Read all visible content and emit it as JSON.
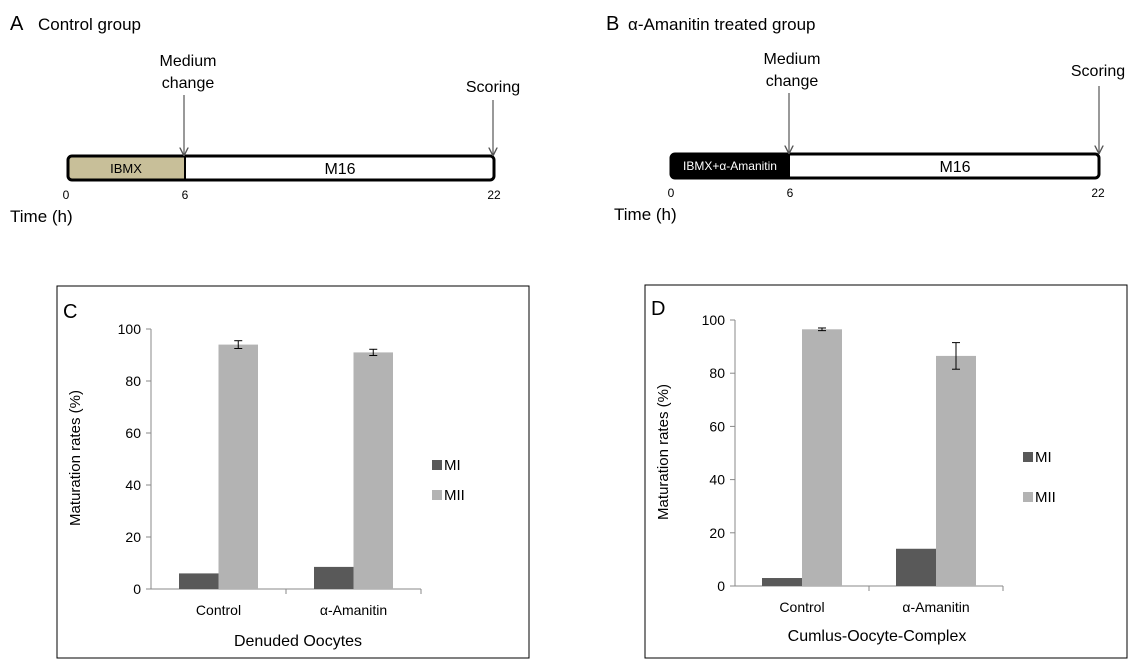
{
  "timelines": [
    {
      "panel_letter": "A",
      "title": "Control group",
      "pre_bar_label": "IBMX",
      "post_bar_label": "M16",
      "pre_bar_color": "#c8bf99",
      "pre_text_color": "#000000",
      "medium_change_label": [
        "Medium",
        "change"
      ],
      "scoring_label": "Scoring",
      "ticks": [
        "0",
        "6",
        "22"
      ],
      "time_axis_label": "Time (h)",
      "change_hour": 6,
      "end_hour": 22
    },
    {
      "panel_letter": "B",
      "title": "α-Amanitin treated group",
      "pre_bar_label": "IBMX+α-Amanitin",
      "post_bar_label": "M16",
      "pre_bar_color": "#000000",
      "pre_text_color": "#ffffff",
      "medium_change_label": [
        "Medium",
        "change"
      ],
      "scoring_label": "Scoring",
      "ticks": [
        "0",
        "6",
        "22"
      ],
      "time_axis_label": "Time (h)",
      "change_hour": 6,
      "end_hour": 22
    }
  ],
  "chart_data": [
    {
      "panel_letter": "C",
      "type": "bar",
      "categories": [
        "Control",
        "α-Amanitin"
      ],
      "series": [
        {
          "name": "MI",
          "values": [
            6,
            8.5
          ],
          "errors": [
            0,
            0
          ],
          "color": "#595959"
        },
        {
          "name": "MII",
          "values": [
            94,
            91
          ],
          "errors": [
            1.5,
            1.2
          ],
          "color": "#b3b3b3"
        }
      ],
      "xlabel": "Denuded Oocytes",
      "ylabel": "Maturation rates (%)",
      "ylim": [
        0,
        100
      ],
      "yticks": [
        0,
        20,
        40,
        60,
        80,
        100
      ],
      "legend": "right",
      "grid": false
    },
    {
      "panel_letter": "D",
      "type": "bar",
      "categories": [
        "Control",
        "α-Amanitin"
      ],
      "series": [
        {
          "name": "MI",
          "values": [
            3,
            14
          ],
          "errors": [
            0,
            0
          ],
          "color": "#595959"
        },
        {
          "name": "MII",
          "values": [
            96.5,
            86.5
          ],
          "errors": [
            0.5,
            5
          ],
          "color": "#b3b3b3"
        }
      ],
      "xlabel": "Cumlus-Oocyte-Complex",
      "ylabel": "Maturation rates (%)",
      "ylim": [
        0,
        100
      ],
      "yticks": [
        0,
        20,
        40,
        60,
        80,
        100
      ],
      "legend": "right",
      "grid": false
    }
  ]
}
